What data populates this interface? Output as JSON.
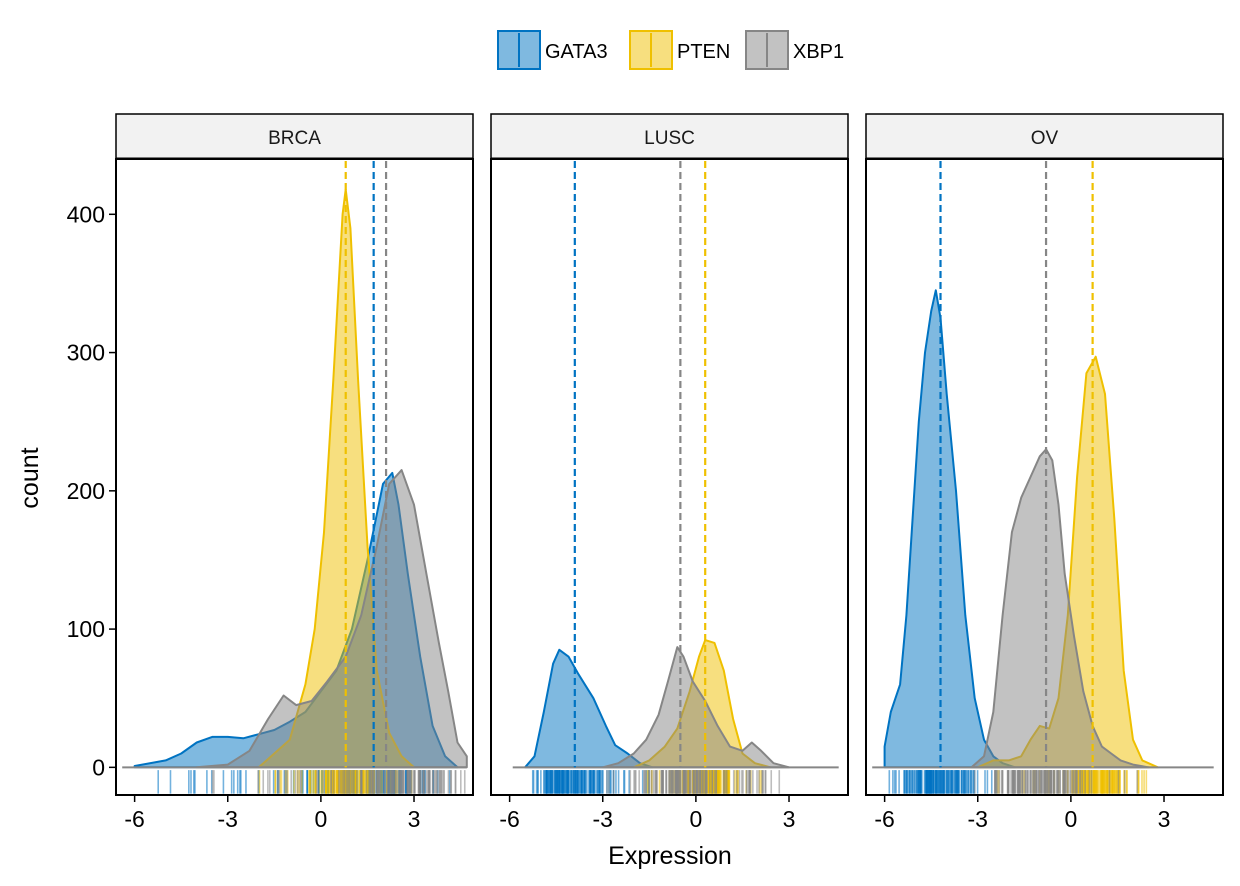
{
  "chart_data": {
    "type": "area",
    "subtype": "density-histogram-faceted",
    "xlabel": "Expression",
    "ylabel": "count",
    "xlim": [
      -6.6,
      4.9
    ],
    "ylim": [
      -20,
      440
    ],
    "x_ticks": [
      -6,
      -3,
      0,
      3
    ],
    "x_tick_labels": [
      "-6",
      "-3",
      "0",
      "3"
    ],
    "y_ticks": [
      0,
      100,
      200,
      300,
      400
    ],
    "y_tick_labels": [
      "0",
      "100",
      "200",
      "300",
      "400"
    ],
    "legend": {
      "position": "top",
      "entries": [
        "GATA3",
        "PTEN",
        "XBP1"
      ]
    },
    "colors": {
      "GATA3": "#0073C2",
      "PTEN": "#EFC000",
      "XBP1": "#868686"
    },
    "panels": [
      {
        "name": "BRCA",
        "series": [
          {
            "name": "GATA3",
            "mean": 1.7,
            "points": [
              [
                -6.0,
                1
              ],
              [
                -5.0,
                5
              ],
              [
                -4.5,
                10
              ],
              [
                -4.0,
                18
              ],
              [
                -3.5,
                22
              ],
              [
                -3.0,
                22
              ],
              [
                -2.5,
                21
              ],
              [
                -2.0,
                24
              ],
              [
                -1.5,
                27
              ],
              [
                -1.0,
                33
              ],
              [
                -0.5,
                40
              ],
              [
                0.0,
                55
              ],
              [
                0.5,
                70
              ],
              [
                1.0,
                100
              ],
              [
                1.5,
                150
              ],
              [
                2.0,
                205
              ],
              [
                2.3,
                213
              ],
              [
                2.5,
                190
              ],
              [
                2.8,
                140
              ],
              [
                3.2,
                80
              ],
              [
                3.6,
                30
              ],
              [
                4.0,
                8
              ],
              [
                4.4,
                0
              ]
            ]
          },
          {
            "name": "PTEN",
            "mean": 0.8,
            "points": [
              [
                -2.0,
                0
              ],
              [
                -1.5,
                10
              ],
              [
                -1.0,
                20
              ],
              [
                -0.5,
                60
              ],
              [
                -0.2,
                100
              ],
              [
                0.1,
                170
              ],
              [
                0.4,
                280
              ],
              [
                0.7,
                400
              ],
              [
                0.8,
                418
              ],
              [
                0.95,
                390
              ],
              [
                1.2,
                280
              ],
              [
                1.5,
                160
              ],
              [
                1.8,
                70
              ],
              [
                2.2,
                25
              ],
              [
                2.6,
                8
              ],
              [
                3.0,
                0
              ]
            ]
          },
          {
            "name": "XBP1",
            "mean": 2.1,
            "points": [
              [
                -4.0,
                0
              ],
              [
                -3.0,
                2
              ],
              [
                -2.3,
                12
              ],
              [
                -1.7,
                35
              ],
              [
                -1.2,
                52
              ],
              [
                -0.8,
                45
              ],
              [
                -0.3,
                48
              ],
              [
                0.2,
                62
              ],
              [
                0.8,
                80
              ],
              [
                1.3,
                110
              ],
              [
                1.8,
                160
              ],
              [
                2.2,
                205
              ],
              [
                2.6,
                215
              ],
              [
                3.0,
                190
              ],
              [
                3.4,
                140
              ],
              [
                3.8,
                90
              ],
              [
                4.1,
                55
              ],
              [
                4.4,
                18
              ],
              [
                4.7,
                8
              ]
            ]
          }
        ]
      },
      {
        "name": "LUSC",
        "series": [
          {
            "name": "GATA3",
            "mean": -3.9,
            "points": [
              [
                -5.5,
                0
              ],
              [
                -5.2,
                8
              ],
              [
                -4.9,
                40
              ],
              [
                -4.6,
                75
              ],
              [
                -4.4,
                85
              ],
              [
                -4.1,
                80
              ],
              [
                -3.8,
                68
              ],
              [
                -3.3,
                50
              ],
              [
                -2.9,
                30
              ],
              [
                -2.6,
                16
              ],
              [
                -2.2,
                10
              ],
              [
                -1.8,
                3
              ],
              [
                -1.4,
                0
              ]
            ]
          },
          {
            "name": "PTEN",
            "mean": 0.3,
            "points": [
              [
                -2.0,
                0
              ],
              [
                -1.5,
                5
              ],
              [
                -1.0,
                15
              ],
              [
                -0.6,
                28
              ],
              [
                -0.2,
                55
              ],
              [
                0.1,
                80
              ],
              [
                0.3,
                92
              ],
              [
                0.6,
                90
              ],
              [
                0.9,
                70
              ],
              [
                1.2,
                35
              ],
              [
                1.5,
                10
              ],
              [
                1.9,
                3
              ],
              [
                2.4,
                0
              ]
            ]
          },
          {
            "name": "XBP1",
            "mean": -0.5,
            "points": [
              [
                -3.0,
                0
              ],
              [
                -2.5,
                3
              ],
              [
                -2.0,
                10
              ],
              [
                -1.6,
                20
              ],
              [
                -1.2,
                38
              ],
              [
                -0.9,
                62
              ],
              [
                -0.6,
                87
              ],
              [
                -0.4,
                80
              ],
              [
                -0.1,
                62
              ],
              [
                0.3,
                48
              ],
              [
                0.7,
                30
              ],
              [
                1.1,
                15
              ],
              [
                1.5,
                12
              ],
              [
                1.8,
                18
              ],
              [
                2.1,
                12
              ],
              [
                2.5,
                3
              ],
              [
                3.0,
                0
              ]
            ]
          }
        ]
      },
      {
        "name": "OV",
        "series": [
          {
            "name": "GATA3",
            "mean": -4.2,
            "points": [
              [
                -6.0,
                0
              ],
              [
                -6.0,
                15
              ],
              [
                -5.8,
                40
              ],
              [
                -5.5,
                60
              ],
              [
                -5.3,
                110
              ],
              [
                -5.1,
                180
              ],
              [
                -4.9,
                250
              ],
              [
                -4.7,
                300
              ],
              [
                -4.5,
                330
              ],
              [
                -4.35,
                345
              ],
              [
                -4.2,
                325
              ],
              [
                -4.0,
                270
              ],
              [
                -3.7,
                200
              ],
              [
                -3.4,
                110
              ],
              [
                -3.1,
                50
              ],
              [
                -2.8,
                20
              ],
              [
                -2.5,
                8
              ],
              [
                -2.2,
                3
              ],
              [
                -1.8,
                0
              ]
            ]
          },
          {
            "name": "PTEN",
            "mean": 0.7,
            "points": [
              [
                -3.0,
                0
              ],
              [
                -2.5,
                5
              ],
              [
                -2.0,
                5
              ],
              [
                -1.6,
                8
              ],
              [
                -1.3,
                20
              ],
              [
                -1.0,
                30
              ],
              [
                -0.7,
                28
              ],
              [
                -0.4,
                50
              ],
              [
                -0.1,
                110
              ],
              [
                0.2,
                210
              ],
              [
                0.5,
                285
              ],
              [
                0.8,
                297
              ],
              [
                1.1,
                270
              ],
              [
                1.4,
                180
              ],
              [
                1.7,
                70
              ],
              [
                2.0,
                20
              ],
              [
                2.3,
                5
              ],
              [
                2.8,
                0
              ]
            ]
          },
          {
            "name": "XBP1",
            "mean": -0.8,
            "points": [
              [
                -3.2,
                0
              ],
              [
                -2.8,
                8
              ],
              [
                -2.5,
                40
              ],
              [
                -2.2,
                110
              ],
              [
                -1.9,
                170
              ],
              [
                -1.6,
                195
              ],
              [
                -1.3,
                210
              ],
              [
                -1.0,
                225
              ],
              [
                -0.8,
                230
              ],
              [
                -0.6,
                222
              ],
              [
                -0.4,
                190
              ],
              [
                -0.2,
                140
              ],
              [
                0.1,
                95
              ],
              [
                0.4,
                55
              ],
              [
                0.7,
                30
              ],
              [
                1.0,
                15
              ],
              [
                1.3,
                10
              ],
              [
                1.6,
                5
              ],
              [
                2.0,
                2
              ],
              [
                2.5,
                0
              ]
            ]
          }
        ]
      }
    ]
  }
}
